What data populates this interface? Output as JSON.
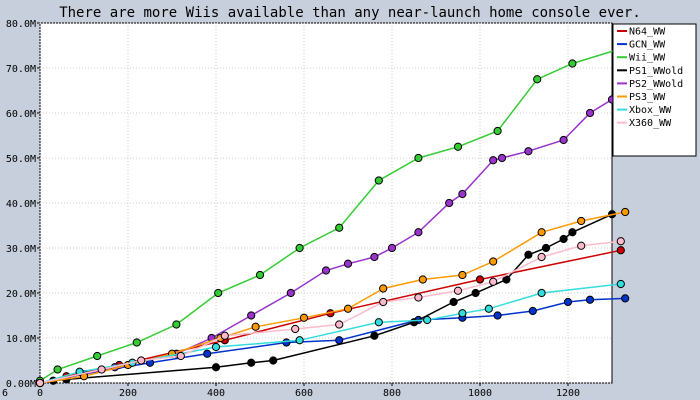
{
  "chart_data": {
    "type": "line",
    "title": "There are more Wiis available than any near-launch home console ever.",
    "xlabel": "",
    "ylabel": "",
    "xlim": [
      0,
      1300
    ],
    "ylim": [
      0,
      80
    ],
    "x_ticks": [
      0,
      200,
      400,
      600,
      800,
      1000,
      1200
    ],
    "y_ticks": [
      0,
      10,
      20,
      30,
      40,
      50,
      60,
      70,
      80
    ],
    "y_tick_labels": [
      "0.00M",
      "10.0M",
      "20.0M",
      "30.0M",
      "40.0M",
      "50.0M",
      "60.0M",
      "70.0M",
      "80.0M"
    ],
    "corner_label": "6",
    "grid": true,
    "legend_position": "top-right",
    "series": [
      {
        "name": "N64_WW",
        "color": "#cc0000",
        "x": [
          0,
          60,
          180,
          420,
          660,
          1000,
          1320
        ],
        "y": [
          0,
          1.5,
          4.0,
          9.5,
          15.5,
          23.0,
          29.5
        ]
      },
      {
        "name": "GCN_WW",
        "color": "#0033cc",
        "x": [
          0,
          100,
          250,
          380,
          560,
          680,
          860,
          960,
          1040,
          1120,
          1200,
          1250,
          1330
        ],
        "y": [
          0,
          2.0,
          4.5,
          6.5,
          9.0,
          9.5,
          14.0,
          14.5,
          15.0,
          16.0,
          18.0,
          18.5,
          18.8
        ]
      },
      {
        "name": "Wii_WW",
        "color": "#33cc33",
        "x": [
          0,
          40,
          130,
          220,
          310,
          405,
          500,
          590,
          680,
          770,
          860,
          950,
          1040,
          1130,
          1210,
          1310
        ],
        "y": [
          0.5,
          3.0,
          6.0,
          9.0,
          13.0,
          20.0,
          24.0,
          30.0,
          34.5,
          45.0,
          50.0,
          52.5,
          56.0,
          67.5,
          71.0,
          74.0
        ]
      },
      {
        "name": "PS1_WWold",
        "color": "#000000",
        "x": [
          0,
          30,
          60,
          400,
          480,
          530,
          760,
          850,
          940,
          990,
          1060,
          1110,
          1150,
          1190,
          1210,
          1300
        ],
        "y": [
          0,
          0.5,
          0.8,
          3.5,
          4.5,
          5.0,
          10.5,
          13.5,
          18.0,
          20.0,
          23.0,
          28.5,
          30.0,
          32.0,
          33.5,
          37.5
        ]
      },
      {
        "name": "PS2_WWold",
        "color": "#9933cc",
        "x": [
          0,
          170,
          310,
          390,
          480,
          570,
          650,
          700,
          760,
          800,
          860,
          930,
          960,
          1030,
          1050,
          1110,
          1190,
          1250,
          1300
        ],
        "y": [
          0,
          3.5,
          6.5,
          10.0,
          15.0,
          20.0,
          25.0,
          26.5,
          28.0,
          30.0,
          33.5,
          40.0,
          42.0,
          49.5,
          50.0,
          51.5,
          54.0,
          60.0,
          63.0
        ]
      },
      {
        "name": "PS3_WW",
        "color": "#ff9900",
        "x": [
          0,
          100,
          200,
          300,
          410,
          490,
          600,
          700,
          780,
          870,
          960,
          1030,
          1140,
          1230,
          1330
        ],
        "y": [
          0,
          1.5,
          4.0,
          6.5,
          10.0,
          12.5,
          14.5,
          16.5,
          21.0,
          23.0,
          24.0,
          27.0,
          33.5,
          36.0,
          38.0
        ]
      },
      {
        "name": "Xbox_WW",
        "color": "#33dddd",
        "x": [
          0,
          90,
          210,
          400,
          590,
          770,
          880,
          960,
          1020,
          1140,
          1320
        ],
        "y": [
          0,
          2.5,
          4.5,
          8.0,
          9.5,
          13.5,
          14.0,
          15.5,
          16.5,
          20.0,
          22.0
        ]
      },
      {
        "name": "X360_WW",
        "color": "#ffbbcc",
        "x": [
          0,
          140,
          230,
          320,
          420,
          580,
          680,
          780,
          860,
          950,
          1030,
          1140,
          1230,
          1320
        ],
        "y": [
          0,
          3.0,
          5.0,
          6.0,
          10.5,
          12.0,
          13.0,
          18.0,
          19.0,
          20.5,
          22.5,
          28.0,
          30.5,
          31.5
        ]
      }
    ]
  }
}
